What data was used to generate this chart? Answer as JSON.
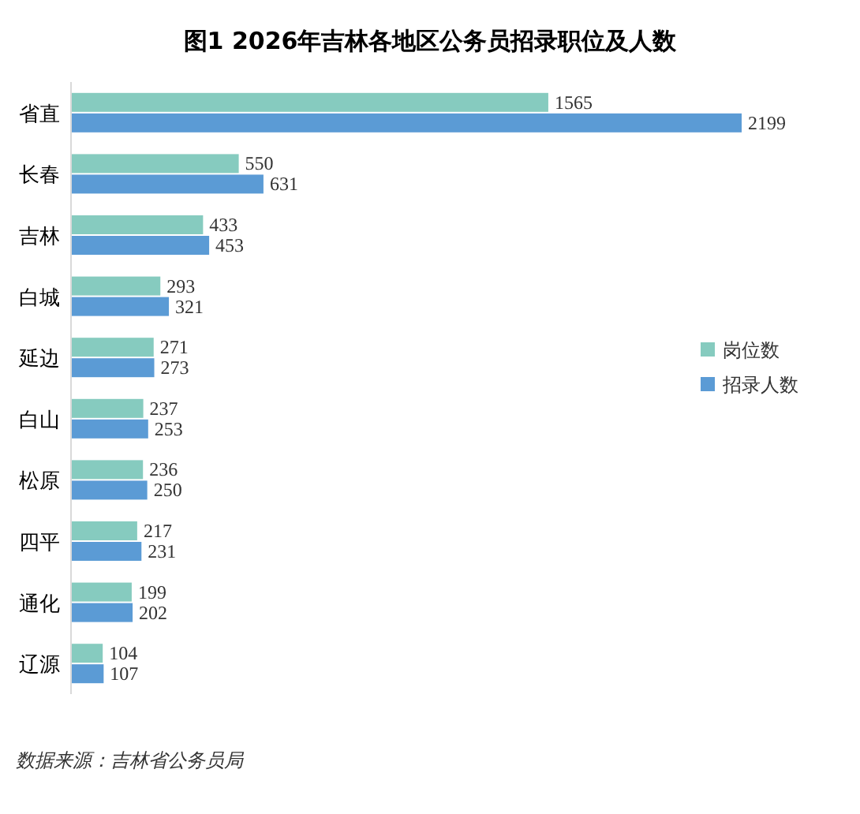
{
  "chart_data": {
    "type": "bar",
    "orientation": "horizontal",
    "title": "图1  2026年吉林各地区公务员招录职位及人数",
    "categories": [
      "省直",
      "长春",
      "吉林",
      "白城",
      "延边",
      "白山",
      "松原",
      "四平",
      "通化",
      "辽源"
    ],
    "series": [
      {
        "name": "岗位数",
        "color": "#86cbbf",
        "values": [
          1565,
          550,
          433,
          293,
          271,
          237,
          236,
          217,
          199,
          104
        ]
      },
      {
        "name": "招录人数",
        "color": "#5b9bd5",
        "values": [
          2199,
          631,
          453,
          321,
          273,
          253,
          250,
          231,
          202,
          107
        ]
      }
    ],
    "data_labels": true,
    "legend": "right",
    "annotations": [
      "数据来源：吉林省公务员局"
    ]
  }
}
